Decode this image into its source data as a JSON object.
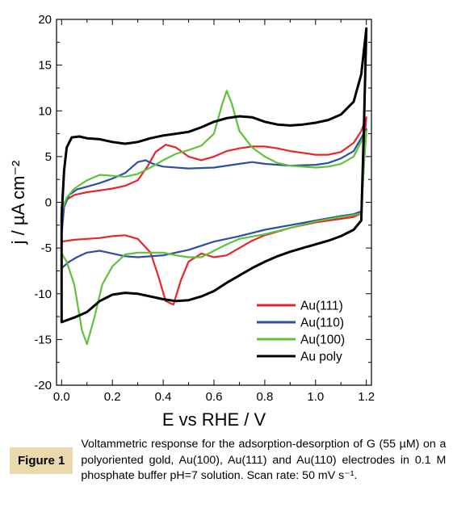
{
  "chart_data": {
    "type": "line",
    "xlabel": "E vs RHE / V",
    "ylabel": "j / µA cm⁻²",
    "xlim": [
      -0.02,
      1.22
    ],
    "ylim": [
      -20,
      20
    ],
    "xticks": [
      "0.0",
      "0.2",
      "0.4",
      "0.6",
      "0.8",
      "1.0",
      "1.2"
    ],
    "yticks": [
      "-20",
      "-15",
      "-10",
      "-5",
      "0",
      "5",
      "10",
      "15",
      "20"
    ],
    "grid": false,
    "legend_position": "bottom-right",
    "series": [
      {
        "name": "Au(111)",
        "color": "#e8262a",
        "forward": [
          [
            0.0,
            -0.5
          ],
          [
            0.02,
            0.3
          ],
          [
            0.05,
            0.8
          ],
          [
            0.1,
            1.1
          ],
          [
            0.15,
            1.3
          ],
          [
            0.2,
            1.5
          ],
          [
            0.25,
            1.8
          ],
          [
            0.3,
            2.4
          ],
          [
            0.34,
            4.0
          ],
          [
            0.37,
            5.5
          ],
          [
            0.41,
            6.3
          ],
          [
            0.45,
            6.0
          ],
          [
            0.5,
            5.0
          ],
          [
            0.55,
            4.6
          ],
          [
            0.6,
            5.0
          ],
          [
            0.65,
            5.6
          ],
          [
            0.7,
            5.9
          ],
          [
            0.75,
            6.1
          ],
          [
            0.8,
            6.1
          ],
          [
            0.85,
            5.9
          ],
          [
            0.9,
            5.6
          ],
          [
            0.95,
            5.4
          ],
          [
            1.0,
            5.2
          ],
          [
            1.05,
            5.2
          ],
          [
            1.1,
            5.5
          ],
          [
            1.15,
            6.5
          ],
          [
            1.18,
            7.8
          ],
          [
            1.2,
            9.3
          ]
        ],
        "backward": [
          [
            1.2,
            9.3
          ],
          [
            1.19,
            6.0
          ],
          [
            1.18,
            -1.2
          ],
          [
            1.15,
            -1.6
          ],
          [
            1.1,
            -1.8
          ],
          [
            1.0,
            -2.2
          ],
          [
            0.9,
            -2.8
          ],
          [
            0.8,
            -3.6
          ],
          [
            0.75,
            -4.2
          ],
          [
            0.7,
            -5.0
          ],
          [
            0.65,
            -5.8
          ],
          [
            0.6,
            -6.0
          ],
          [
            0.55,
            -5.6
          ],
          [
            0.5,
            -6.5
          ],
          [
            0.47,
            -8.5
          ],
          [
            0.44,
            -11.2
          ],
          [
            0.41,
            -10.8
          ],
          [
            0.38,
            -8.0
          ],
          [
            0.35,
            -5.5
          ],
          [
            0.3,
            -4.0
          ],
          [
            0.25,
            -3.6
          ],
          [
            0.2,
            -3.7
          ],
          [
            0.15,
            -3.9
          ],
          [
            0.1,
            -4.0
          ],
          [
            0.05,
            -4.1
          ],
          [
            0.0,
            -4.3
          ]
        ]
      },
      {
        "name": "Au(110)",
        "color": "#2c4fa0",
        "forward": [
          [
            0.0,
            -3.6
          ],
          [
            0.01,
            -0.5
          ],
          [
            0.03,
            0.8
          ],
          [
            0.06,
            1.4
          ],
          [
            0.1,
            1.7
          ],
          [
            0.15,
            2.1
          ],
          [
            0.2,
            2.6
          ],
          [
            0.25,
            3.2
          ],
          [
            0.3,
            4.4
          ],
          [
            0.33,
            4.6
          ],
          [
            0.36,
            4.2
          ],
          [
            0.4,
            3.9
          ],
          [
            0.5,
            3.7
          ],
          [
            0.6,
            3.8
          ],
          [
            0.7,
            4.2
          ],
          [
            0.75,
            4.4
          ],
          [
            0.8,
            4.2
          ],
          [
            0.9,
            4.0
          ],
          [
            1.0,
            4.1
          ],
          [
            1.05,
            4.3
          ],
          [
            1.1,
            4.8
          ],
          [
            1.15,
            5.6
          ],
          [
            1.2,
            8.0
          ]
        ],
        "backward": [
          [
            1.2,
            8.0
          ],
          [
            1.19,
            4.0
          ],
          [
            1.18,
            -1.0
          ],
          [
            1.15,
            -1.3
          ],
          [
            1.1,
            -1.5
          ],
          [
            1.0,
            -2.0
          ],
          [
            0.9,
            -2.5
          ],
          [
            0.8,
            -3.0
          ],
          [
            0.7,
            -3.7
          ],
          [
            0.6,
            -4.3
          ],
          [
            0.5,
            -5.2
          ],
          [
            0.4,
            -5.8
          ],
          [
            0.3,
            -6.0
          ],
          [
            0.25,
            -5.9
          ],
          [
            0.2,
            -5.6
          ],
          [
            0.15,
            -5.3
          ],
          [
            0.1,
            -5.5
          ],
          [
            0.06,
            -6.0
          ],
          [
            0.03,
            -6.5
          ],
          [
            0.0,
            -7.2
          ]
        ]
      },
      {
        "name": "Au(100)",
        "color": "#5ec23a",
        "forward": [
          [
            0.0,
            -1.0
          ],
          [
            0.02,
            0.5
          ],
          [
            0.05,
            1.5
          ],
          [
            0.1,
            2.4
          ],
          [
            0.15,
            3.0
          ],
          [
            0.2,
            2.9
          ],
          [
            0.25,
            2.8
          ],
          [
            0.3,
            3.1
          ],
          [
            0.35,
            3.8
          ],
          [
            0.4,
            4.6
          ],
          [
            0.45,
            5.3
          ],
          [
            0.5,
            5.7
          ],
          [
            0.55,
            6.2
          ],
          [
            0.6,
            7.5
          ],
          [
            0.63,
            10.5
          ],
          [
            0.65,
            12.2
          ],
          [
            0.67,
            10.8
          ],
          [
            0.7,
            7.8
          ],
          [
            0.75,
            6.0
          ],
          [
            0.8,
            5.0
          ],
          [
            0.85,
            4.3
          ],
          [
            0.9,
            4.0
          ],
          [
            1.0,
            3.8
          ],
          [
            1.05,
            3.9
          ],
          [
            1.1,
            4.2
          ],
          [
            1.15,
            5.0
          ],
          [
            1.2,
            7.8
          ]
        ],
        "backward": [
          [
            1.2,
            7.8
          ],
          [
            1.19,
            4.0
          ],
          [
            1.18,
            -1.2
          ],
          [
            1.15,
            -1.4
          ],
          [
            1.1,
            -1.6
          ],
          [
            1.0,
            -2.1
          ],
          [
            0.9,
            -2.8
          ],
          [
            0.8,
            -3.5
          ],
          [
            0.7,
            -4.0
          ],
          [
            0.65,
            -4.6
          ],
          [
            0.6,
            -5.3
          ],
          [
            0.55,
            -6.0
          ],
          [
            0.5,
            -6.0
          ],
          [
            0.45,
            -5.8
          ],
          [
            0.4,
            -5.5
          ],
          [
            0.35,
            -5.5
          ],
          [
            0.3,
            -5.5
          ],
          [
            0.25,
            -5.7
          ],
          [
            0.2,
            -7.0
          ],
          [
            0.16,
            -9.0
          ],
          [
            0.13,
            -12.5
          ],
          [
            0.1,
            -15.5
          ],
          [
            0.08,
            -14.0
          ],
          [
            0.05,
            -9.0
          ],
          [
            0.02,
            -6.5
          ],
          [
            0.0,
            -5.6
          ]
        ]
      },
      {
        "name": "Au poly",
        "color": "#000000",
        "forward": [
          [
            0.0,
            -1.5
          ],
          [
            0.01,
            3.5
          ],
          [
            0.02,
            6.0
          ],
          [
            0.04,
            7.1
          ],
          [
            0.07,
            7.2
          ],
          [
            0.1,
            7.0
          ],
          [
            0.15,
            6.9
          ],
          [
            0.2,
            6.6
          ],
          [
            0.25,
            6.4
          ],
          [
            0.3,
            6.6
          ],
          [
            0.35,
            7.0
          ],
          [
            0.4,
            7.3
          ],
          [
            0.45,
            7.5
          ],
          [
            0.5,
            7.7
          ],
          [
            0.55,
            8.2
          ],
          [
            0.6,
            8.8
          ],
          [
            0.65,
            9.2
          ],
          [
            0.7,
            9.4
          ],
          [
            0.75,
            9.3
          ],
          [
            0.8,
            8.8
          ],
          [
            0.85,
            8.5
          ],
          [
            0.9,
            8.4
          ],
          [
            0.95,
            8.5
          ],
          [
            1.0,
            8.7
          ],
          [
            1.05,
            9.0
          ],
          [
            1.1,
            9.6
          ],
          [
            1.15,
            11.0
          ],
          [
            1.18,
            14.0
          ],
          [
            1.2,
            19.0
          ]
        ],
        "backward": [
          [
            1.2,
            19.0
          ],
          [
            1.19,
            8.0
          ],
          [
            1.18,
            -2.0
          ],
          [
            1.15,
            -3.0
          ],
          [
            1.1,
            -3.7
          ],
          [
            1.05,
            -4.2
          ],
          [
            1.0,
            -4.6
          ],
          [
            0.95,
            -5.0
          ],
          [
            0.9,
            -5.4
          ],
          [
            0.85,
            -5.9
          ],
          [
            0.8,
            -6.5
          ],
          [
            0.75,
            -7.2
          ],
          [
            0.7,
            -8.0
          ],
          [
            0.65,
            -8.8
          ],
          [
            0.6,
            -9.7
          ],
          [
            0.55,
            -10.3
          ],
          [
            0.5,
            -10.7
          ],
          [
            0.45,
            -10.8
          ],
          [
            0.4,
            -10.6
          ],
          [
            0.35,
            -10.3
          ],
          [
            0.3,
            -10.0
          ],
          [
            0.25,
            -9.9
          ],
          [
            0.2,
            -10.1
          ],
          [
            0.15,
            -10.8
          ],
          [
            0.1,
            -12.0
          ],
          [
            0.05,
            -12.6
          ],
          [
            0.0,
            -13.1
          ]
        ]
      }
    ]
  },
  "caption": {
    "label": "Figure 1",
    "text": "Voltammetric response for the adsorption-desorption of G (55 µM) on a polyoriented gold, Au(100), Au(111) and Au(110) electrodes in 0.1 M phosphate buffer pH=7 solution. Scan rate: 50 mV s⁻¹."
  }
}
